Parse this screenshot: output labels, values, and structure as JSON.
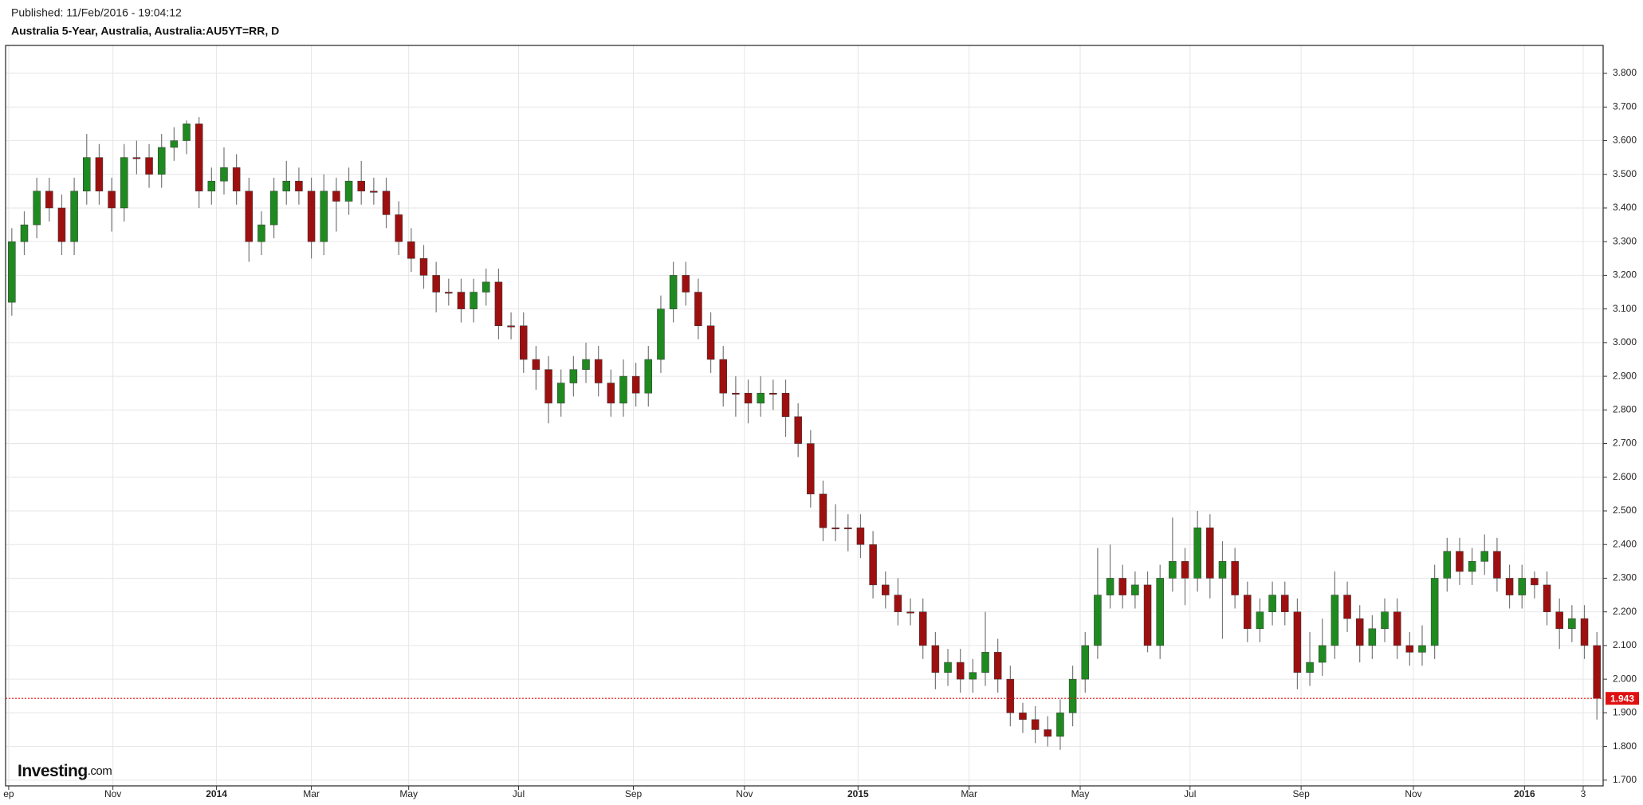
{
  "chart_data": {
    "type": "candlestick",
    "published": "Published: 11/Feb/2016 - 19:04:12",
    "title": "Australia 5-Year, Australia, Australia:AU5YT=RR, D",
    "logo": "Investing",
    "logo_suffix": ".com",
    "up_color": "#1f8a1f",
    "down_color": "#9e1010",
    "last_price_color": "#e01010",
    "grid": true,
    "xlim": [
      -0.5,
      127.5
    ],
    "xticks": [
      {
        "value": -0.25,
        "label": "ep"
      },
      {
        "value": 8.1,
        "label": "Nov"
      },
      {
        "value": 16.4,
        "label": "2014"
      },
      {
        "value": 24.0,
        "label": "Mar"
      },
      {
        "value": 31.8,
        "label": "May"
      },
      {
        "value": 40.6,
        "label": "Jul"
      },
      {
        "value": 49.8,
        "label": "Sep"
      },
      {
        "value": 58.7,
        "label": "Nov"
      },
      {
        "value": 67.8,
        "label": "2015"
      },
      {
        "value": 76.7,
        "label": "Mar"
      },
      {
        "value": 85.6,
        "label": "May"
      },
      {
        "value": 94.4,
        "label": "Jul"
      },
      {
        "value": 103.3,
        "label": "Sep"
      },
      {
        "value": 112.3,
        "label": "Nov"
      },
      {
        "value": 121.2,
        "label": "2016"
      },
      {
        "value": 125.9,
        "label": "3"
      }
    ],
    "ylim": [
      1.683,
      3.883
    ],
    "yticks": [
      {
        "value": 1.7,
        "label": "1.700"
      },
      {
        "value": 1.8,
        "label": "1.800"
      },
      {
        "value": 1.9,
        "label": "1.900"
      },
      {
        "value": 2.0,
        "label": "2.000"
      },
      {
        "value": 2.1,
        "label": "2.100"
      },
      {
        "value": 2.2,
        "label": "2.200"
      },
      {
        "value": 2.3,
        "label": "2.300"
      },
      {
        "value": 2.4,
        "label": "2.400"
      },
      {
        "value": 2.5,
        "label": "2.500"
      },
      {
        "value": 2.6,
        "label": "2.600"
      },
      {
        "value": 2.7,
        "label": "2.700"
      },
      {
        "value": 2.8,
        "label": "2.800"
      },
      {
        "value": 2.9,
        "label": "2.900"
      },
      {
        "value": 3.0,
        "label": "3.000"
      },
      {
        "value": 3.1,
        "label": "3.100"
      },
      {
        "value": 3.2,
        "label": "3.200"
      },
      {
        "value": 3.3,
        "label": "3.300"
      },
      {
        "value": 3.4,
        "label": "3.400"
      },
      {
        "value": 3.5,
        "label": "3.500"
      },
      {
        "value": 3.6,
        "label": "3.600"
      },
      {
        "value": 3.7,
        "label": "3.700"
      },
      {
        "value": 3.8,
        "label": "3.800"
      }
    ],
    "open": [
      3.12,
      3.3,
      3.35,
      3.45,
      3.4,
      3.3,
      3.45,
      3.55,
      3.45,
      3.4,
      3.55,
      3.55,
      3.5,
      3.58,
      3.6,
      3.65,
      3.45,
      3.48,
      3.52,
      3.45,
      3.3,
      3.35,
      3.45,
      3.48,
      3.45,
      3.3,
      3.45,
      3.42,
      3.48,
      3.45,
      3.45,
      3.38,
      3.3,
      3.25,
      3.2,
      3.15,
      3.15,
      3.1,
      3.15,
      3.18,
      3.05,
      3.05,
      2.95,
      2.92,
      2.82,
      2.88,
      2.92,
      2.95,
      2.88,
      2.82,
      2.9,
      2.85,
      2.95,
      3.1,
      3.2,
      3.15,
      3.05,
      2.95,
      2.85,
      2.85,
      2.82,
      2.85,
      2.85,
      2.78,
      2.7,
      2.55,
      2.45,
      2.45,
      2.45,
      2.4,
      2.28,
      2.25,
      2.2,
      2.2,
      2.1,
      2.02,
      2.05,
      2.0,
      2.02,
      2.08,
      2.0,
      1.9,
      1.88,
      1.85,
      1.83,
      1.9,
      2.0,
      2.1,
      2.25,
      2.3,
      2.25,
      2.28,
      2.1,
      2.3,
      2.35,
      2.3,
      2.45,
      2.3,
      2.35,
      2.25,
      2.15,
      2.2,
      2.25,
      2.2,
      2.02,
      2.05,
      2.1,
      2.25,
      2.18,
      2.1,
      2.15,
      2.2,
      2.1,
      2.08,
      2.1,
      2.3,
      2.38,
      2.32,
      2.35,
      2.38,
      2.3,
      2.25,
      2.3,
      2.28,
      2.2,
      2.15,
      2.18,
      2.1
    ],
    "high": [
      3.34,
      3.39,
      3.49,
      3.49,
      3.44,
      3.49,
      3.62,
      3.59,
      3.49,
      3.59,
      3.6,
      3.59,
      3.62,
      3.64,
      3.66,
      3.67,
      3.52,
      3.58,
      3.56,
      3.49,
      3.39,
      3.49,
      3.54,
      3.52,
      3.49,
      3.5,
      3.49,
      3.52,
      3.54,
      3.49,
      3.49,
      3.42,
      3.34,
      3.29,
      3.24,
      3.19,
      3.19,
      3.19,
      3.22,
      3.22,
      3.09,
      3.09,
      2.99,
      2.96,
      2.92,
      2.96,
      3.0,
      2.99,
      2.92,
      2.95,
      2.94,
      2.99,
      3.14,
      3.24,
      3.24,
      3.19,
      3.09,
      2.99,
      2.9,
      2.89,
      2.9,
      2.89,
      2.89,
      2.82,
      2.74,
      2.59,
      2.52,
      2.49,
      2.49,
      2.44,
      2.32,
      2.3,
      2.24,
      2.24,
      2.14,
      2.09,
      2.09,
      2.06,
      2.2,
      2.12,
      2.04,
      1.93,
      1.92,
      1.89,
      1.94,
      2.04,
      2.14,
      2.39,
      2.4,
      2.34,
      2.32,
      2.32,
      2.34,
      2.48,
      2.39,
      2.5,
      2.49,
      2.41,
      2.39,
      2.29,
      2.24,
      2.29,
      2.29,
      2.24,
      2.14,
      2.18,
      2.32,
      2.29,
      2.22,
      2.19,
      2.24,
      2.24,
      2.14,
      2.16,
      2.34,
      2.42,
      2.42,
      2.39,
      2.43,
      2.42,
      2.34,
      2.34,
      2.32,
      2.32,
      2.24,
      2.22,
      2.22,
      2.14
    ],
    "low": [
      3.08,
      3.26,
      3.31,
      3.36,
      3.26,
      3.26,
      3.41,
      3.41,
      3.33,
      3.36,
      3.5,
      3.46,
      3.46,
      3.54,
      3.56,
      3.4,
      3.41,
      3.44,
      3.41,
      3.24,
      3.26,
      3.31,
      3.41,
      3.41,
      3.25,
      3.26,
      3.33,
      3.38,
      3.41,
      3.41,
      3.34,
      3.26,
      3.21,
      3.16,
      3.09,
      3.11,
      3.06,
      3.06,
      3.11,
      3.01,
      3.01,
      2.91,
      2.86,
      2.76,
      2.78,
      2.84,
      2.88,
      2.84,
      2.78,
      2.78,
      2.81,
      2.81,
      2.91,
      3.06,
      3.11,
      3.01,
      2.91,
      2.81,
      2.78,
      2.76,
      2.78,
      2.8,
      2.72,
      2.66,
      2.51,
      2.41,
      2.41,
      2.38,
      2.36,
      2.24,
      2.21,
      2.16,
      2.16,
      2.06,
      1.97,
      1.98,
      1.96,
      1.96,
      1.98,
      1.96,
      1.86,
      1.84,
      1.81,
      1.8,
      1.79,
      1.86,
      1.96,
      2.06,
      2.21,
      2.21,
      2.21,
      2.08,
      2.06,
      2.26,
      2.22,
      2.26,
      2.24,
      2.12,
      2.21,
      2.11,
      2.11,
      2.16,
      2.16,
      1.97,
      1.98,
      2.01,
      2.06,
      2.14,
      2.05,
      2.06,
      2.11,
      2.06,
      2.04,
      2.04,
      2.06,
      2.26,
      2.28,
      2.28,
      2.31,
      2.26,
      2.21,
      2.21,
      2.24,
      2.16,
      2.09,
      2.11,
      2.06,
      1.88
    ],
    "close": [
      3.3,
      3.35,
      3.45,
      3.4,
      3.3,
      3.45,
      3.55,
      3.45,
      3.4,
      3.55,
      3.55,
      3.5,
      3.58,
      3.6,
      3.65,
      3.45,
      3.48,
      3.52,
      3.45,
      3.3,
      3.35,
      3.45,
      3.48,
      3.45,
      3.3,
      3.45,
      3.42,
      3.48,
      3.45,
      3.45,
      3.38,
      3.3,
      3.25,
      3.2,
      3.15,
      3.15,
      3.1,
      3.15,
      3.18,
      3.05,
      3.05,
      2.95,
      2.92,
      2.82,
      2.88,
      2.92,
      2.95,
      2.88,
      2.82,
      2.9,
      2.85,
      2.95,
      3.1,
      3.2,
      3.15,
      3.05,
      2.95,
      2.85,
      2.85,
      2.82,
      2.85,
      2.85,
      2.78,
      2.7,
      2.55,
      2.45,
      2.45,
      2.45,
      2.4,
      2.28,
      2.25,
      2.2,
      2.2,
      2.1,
      2.02,
      2.05,
      2.0,
      2.02,
      2.08,
      2.0,
      1.9,
      1.88,
      1.85,
      1.83,
      1.9,
      2.0,
      2.1,
      2.25,
      2.3,
      2.25,
      2.28,
      2.1,
      2.3,
      2.35,
      2.3,
      2.45,
      2.3,
      2.35,
      2.25,
      2.15,
      2.2,
      2.25,
      2.2,
      2.02,
      2.05,
      2.1,
      2.25,
      2.18,
      2.1,
      2.15,
      2.2,
      2.1,
      2.08,
      2.1,
      2.3,
      2.38,
      2.32,
      2.35,
      2.38,
      2.3,
      2.25,
      2.3,
      2.28,
      2.2,
      2.15,
      2.18,
      2.1,
      1.943
    ]
  }
}
